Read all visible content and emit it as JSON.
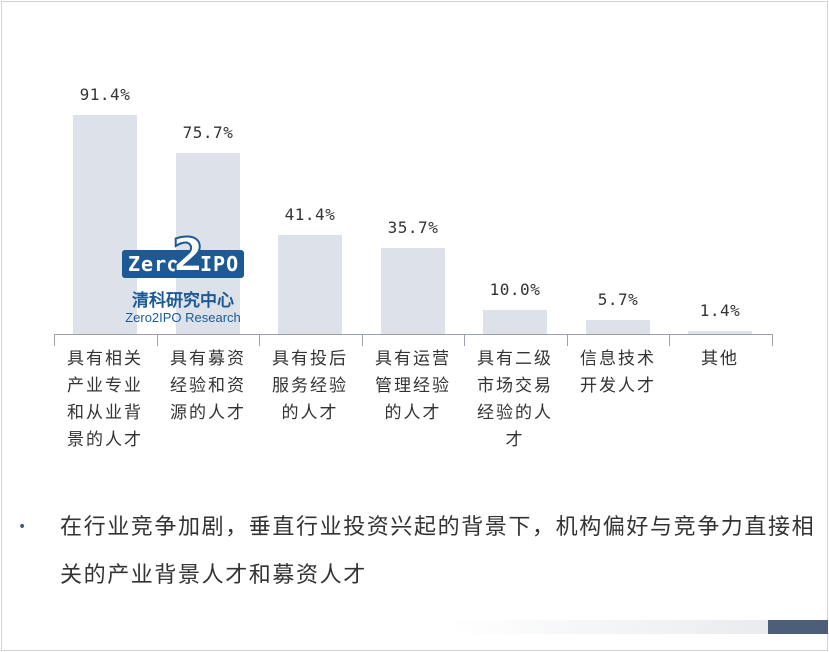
{
  "chart_data": {
    "type": "bar",
    "categories": [
      "具有相关产业专业和从业背景的人才",
      "具有募资经验和资源的人才",
      "具有投后服务经验的人才",
      "具有运营管理经验的人才",
      "具有二级市场交易经验的人才",
      "信息技术开发人才",
      "其他"
    ],
    "category_lines": [
      [
        "具有相关",
        "产业专业",
        "和从业背",
        "景的人才"
      ],
      [
        "具有募资",
        "经验和资",
        "源的人才"
      ],
      [
        "具有投后",
        "服务经验",
        "的人才"
      ],
      [
        "具有运营",
        "管理经验",
        "的人才"
      ],
      [
        "具有二级",
        "市场交易",
        "经验的人",
        "才"
      ],
      [
        "信息技术",
        "开发人才"
      ],
      [
        "其他"
      ]
    ],
    "values": [
      91.4,
      75.7,
      41.4,
      35.7,
      10.0,
      5.7,
      1.4
    ],
    "value_labels": [
      "91.4%",
      "75.7%",
      "41.4%",
      "35.7%",
      "10.0%",
      "5.7%",
      "1.4%"
    ],
    "ylim": [
      0,
      100
    ],
    "grid": false,
    "legend": "none",
    "bar_color": "#dde1ea",
    "axis_color": "#9aa1ab"
  },
  "watermark": {
    "logo_word_left": "Zero",
    "logo_word_mid": "2",
    "logo_word_right": "IPO",
    "cn_name": "清科研究中心",
    "en_name": "Zero2IPO Research"
  },
  "summary": {
    "bullet": "•",
    "text": "在行业竞争加剧，垂直行业投资兴起的背景下，机构偏好与竞争力直接相关的产业背景人才和募资人才"
  }
}
